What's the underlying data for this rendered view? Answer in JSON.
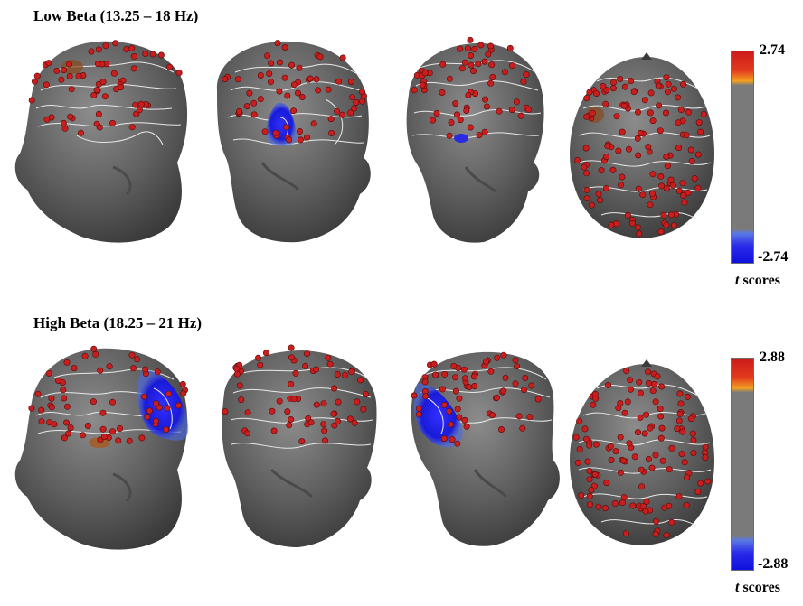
{
  "panels": [
    {
      "title": "Low Beta (13.25 – 18 Hz)",
      "scale": {
        "max_label": "2.74",
        "min_label": "-2.74",
        "units_var": "t",
        "units_word": " scores"
      },
      "views": [
        "left-lateral",
        "posterior-left",
        "posterior-right",
        "top"
      ],
      "negative_clusters": [
        "posterior-left",
        "posterior-right"
      ],
      "positive_clusters": [
        "left-lateral",
        "top"
      ]
    },
    {
      "title": "High Beta (18.25 – 21 Hz)",
      "scale": {
        "max_label": "2.88",
        "min_label": "-2.88",
        "units_var": "t",
        "units_word": " scores"
      },
      "views": [
        "left-lateral",
        "posterior",
        "right-lateral",
        "top"
      ],
      "negative_clusters": [
        "left-lateral",
        "right-lateral"
      ],
      "positive_clusters": [
        "left-lateral"
      ]
    }
  ],
  "colors": {
    "positive": "#d81e1e",
    "positive_mid": "#f0a01e",
    "neutral": "#7a7a7a",
    "negative": "#1414e6",
    "electrode": "#c81e1e",
    "head": "#6a6a6a",
    "contour": "#e8e8e8"
  }
}
